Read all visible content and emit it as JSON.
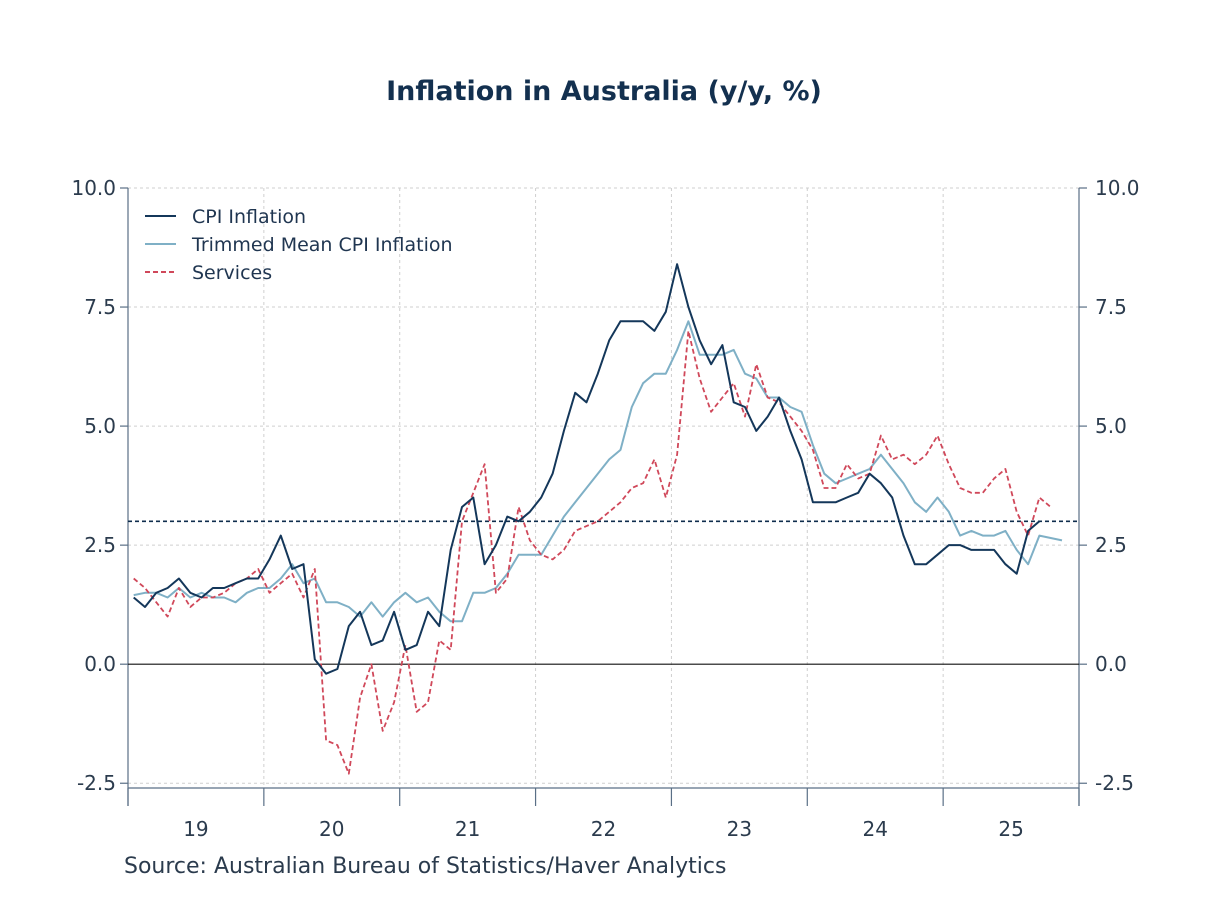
{
  "chart_data": {
    "type": "line",
    "title": "Inflation in Australia (y/y, %)",
    "source": "Source:  Australian Bureau of Statistics/Haver Analytics",
    "x_tick_labels": [
      "19",
      "20",
      "21",
      "22",
      "23",
      "24",
      "25"
    ],
    "y_tick_labels": [
      "10.0",
      "7.5",
      "5.0",
      "2.5",
      "0.0",
      "-2.5"
    ],
    "ylim": [
      -2.6,
      10.0
    ],
    "xlim": [
      "2019-01",
      "2025-12"
    ],
    "grid": true,
    "legend_position": "top-left",
    "reference_lines": [
      {
        "y": 0.0,
        "style": "solid",
        "color": "#111111"
      },
      {
        "y": 3.0,
        "style": "dashed",
        "color": "#0f2d4d"
      }
    ],
    "series": [
      {
        "name": "CPI Inflation",
        "color": "#14375a",
        "style": "solid",
        "start": "2019-01",
        "values": [
          1.4,
          1.2,
          1.5,
          1.6,
          1.8,
          1.5,
          1.4,
          1.6,
          1.6,
          1.7,
          1.8,
          1.8,
          2.2,
          2.7,
          2.0,
          2.1,
          0.1,
          -0.2,
          -0.1,
          0.8,
          1.1,
          0.4,
          0.5,
          1.1,
          0.3,
          0.4,
          1.1,
          0.8,
          2.4,
          3.3,
          3.5,
          2.1,
          2.5,
          3.1,
          3.0,
          3.2,
          3.5,
          4.0,
          4.9,
          5.7,
          5.5,
          6.1,
          6.8,
          7.2,
          7.2,
          7.2,
          7.0,
          7.4,
          8.4,
          7.5,
          6.8,
          6.3,
          6.7,
          5.5,
          5.4,
          4.9,
          5.2,
          5.6,
          4.9,
          4.3,
          3.4,
          3.4,
          3.4,
          3.5,
          3.6,
          4.0,
          3.8,
          3.5,
          2.7,
          2.1,
          2.1,
          2.3,
          2.5,
          2.5,
          2.4,
          2.4,
          2.4,
          2.1,
          1.9,
          2.8,
          3.0
        ]
      },
      {
        "name": "Trimmed Mean CPI Inflation",
        "color": "#7fb0c6",
        "style": "solid",
        "start": "2019-01",
        "values": [
          1.45,
          1.5,
          1.5,
          1.4,
          1.6,
          1.4,
          1.5,
          1.4,
          1.4,
          1.3,
          1.5,
          1.6,
          1.6,
          1.8,
          2.1,
          1.7,
          1.8,
          1.3,
          1.3,
          1.2,
          1.0,
          1.3,
          1.0,
          1.3,
          1.5,
          1.3,
          1.4,
          1.1,
          0.9,
          0.9,
          1.5,
          1.5,
          1.6,
          1.9,
          2.3,
          2.3,
          2.3,
          2.7,
          3.1,
          3.4,
          3.7,
          4.0,
          4.3,
          4.5,
          5.4,
          5.9,
          6.1,
          6.1,
          6.6,
          7.2,
          6.5,
          6.5,
          6.5,
          6.6,
          6.1,
          6.0,
          5.6,
          5.6,
          5.4,
          5.3,
          4.6,
          4.0,
          3.8,
          3.9,
          4.0,
          4.1,
          4.4,
          4.1,
          3.8,
          3.4,
          3.2,
          3.5,
          3.2,
          2.7,
          2.8,
          2.7,
          2.7,
          2.8,
          2.4,
          2.1,
          2.7,
          2.65,
          2.6
        ]
      },
      {
        "name": "Services",
        "color": "#d0485a",
        "style": "dashed",
        "start": "2019-01",
        "values": [
          1.8,
          1.6,
          1.3,
          1.0,
          1.6,
          1.2,
          1.4,
          1.4,
          1.5,
          1.7,
          1.8,
          2.0,
          1.5,
          1.7,
          1.9,
          1.4,
          2.0,
          -1.6,
          -1.7,
          -2.3,
          -0.7,
          0.0,
          -1.4,
          -0.8,
          0.4,
          -1.0,
          -0.8,
          0.5,
          0.3,
          3.0,
          3.6,
          4.2,
          1.5,
          1.8,
          3.3,
          2.6,
          2.3,
          2.2,
          2.4,
          2.8,
          2.9,
          3.0,
          3.2,
          3.4,
          3.7,
          3.8,
          4.3,
          3.5,
          4.4,
          7.0,
          6.0,
          5.3,
          5.6,
          5.9,
          5.2,
          6.3,
          5.6,
          5.5,
          5.2,
          4.9,
          4.5,
          3.7,
          3.7,
          4.2,
          3.9,
          4.0,
          4.8,
          4.3,
          4.4,
          4.2,
          4.4,
          4.8,
          4.2,
          3.7,
          3.6,
          3.6,
          3.9,
          4.1,
          3.2,
          2.7,
          3.5,
          3.3
        ]
      }
    ]
  }
}
